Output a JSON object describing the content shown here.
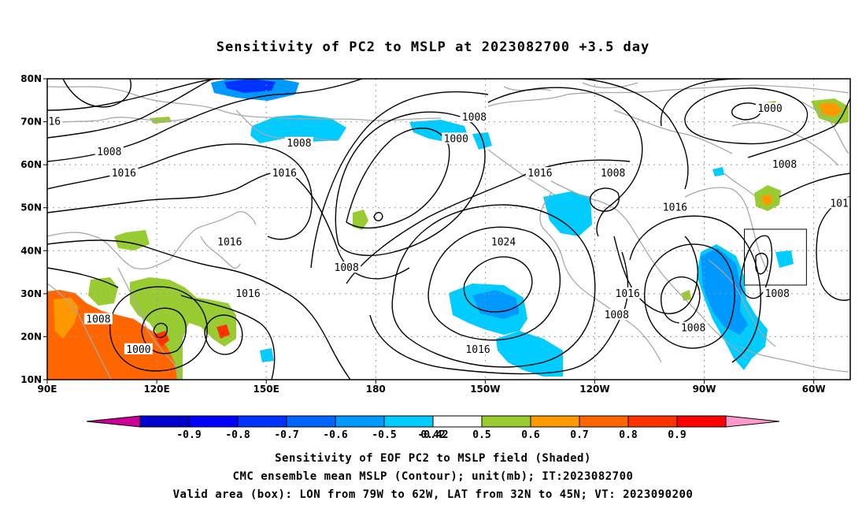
{
  "title": "Sensitivity of PC2 to MSLP at 2023082700 +3.5 day",
  "captions": [
    "Sensitivity of EOF PC2 to MSLP field (Shaded)",
    "CMC ensemble mean MSLP (Contour); unit(mb); IT:2023082700",
    "Valid area (box): LON from 79W to 62W, LAT from 32N to 45N; VT: 2023090200"
  ],
  "map": {
    "lon_range": [
      90,
      310
    ],
    "lat_range": [
      10,
      80
    ],
    "lat_ticks": [
      {
        "value": 80,
        "label": "80N"
      },
      {
        "value": 70,
        "label": "70N"
      },
      {
        "value": 60,
        "label": "60N"
      },
      {
        "value": 50,
        "label": "50N"
      },
      {
        "value": 40,
        "label": "40N"
      },
      {
        "value": 30,
        "label": "30N"
      },
      {
        "value": 20,
        "label": "20N"
      },
      {
        "value": 10,
        "label": "10N"
      }
    ],
    "lon_ticks": [
      {
        "value": 90,
        "label": "90E"
      },
      {
        "value": 120,
        "label": "120E"
      },
      {
        "value": 150,
        "label": "150E"
      },
      {
        "value": 180,
        "label": "180"
      },
      {
        "value": 210,
        "label": "150W"
      },
      {
        "value": 240,
        "label": "120W"
      },
      {
        "value": 270,
        "label": "90W"
      },
      {
        "value": 300,
        "label": "60W"
      }
    ],
    "valid_box": {
      "lon_min": 281,
      "lon_max": 298,
      "lat_min": 32,
      "lat_max": 45
    },
    "contour_labels": [
      {
        "text": "16",
        "lon": 92,
        "lat": 70
      },
      {
        "text": "1008",
        "lon": 107,
        "lat": 63
      },
      {
        "text": "1016",
        "lon": 111,
        "lat": 58
      },
      {
        "text": "1016",
        "lon": 140,
        "lat": 42
      },
      {
        "text": "1008",
        "lon": 159,
        "lat": 65
      },
      {
        "text": "1016",
        "lon": 155,
        "lat": 58
      },
      {
        "text": "1008",
        "lon": 207,
        "lat": 71
      },
      {
        "text": "1000",
        "lon": 202,
        "lat": 66
      },
      {
        "text": "1008",
        "lon": 172,
        "lat": 36
      },
      {
        "text": "1016",
        "lon": 145,
        "lat": 30
      },
      {
        "text": "1024",
        "lon": 215,
        "lat": 42
      },
      {
        "text": "1016",
        "lon": 225,
        "lat": 58
      },
      {
        "text": "1008",
        "lon": 245,
        "lat": 58
      },
      {
        "text": "1016",
        "lon": 262,
        "lat": 50
      },
      {
        "text": "1008",
        "lon": 292,
        "lat": 60
      },
      {
        "text": "1000",
        "lon": 288,
        "lat": 73
      },
      {
        "text": "101",
        "lon": 307,
        "lat": 51
      },
      {
        "text": "1016",
        "lon": 249,
        "lat": 30
      },
      {
        "text": "1008",
        "lon": 246,
        "lat": 25
      },
      {
        "text": "1008",
        "lon": 267,
        "lat": 22
      },
      {
        "text": "1008",
        "lon": 290,
        "lat": 30
      },
      {
        "text": "1016",
        "lon": 208,
        "lat": 17
      },
      {
        "text": "1008",
        "lon": 104,
        "lat": 24
      },
      {
        "text": "1000",
        "lon": 115,
        "lat": 17
      }
    ]
  },
  "colorbar": {
    "labels": [
      "-0.9",
      "-0.8",
      "-0.7",
      "-0.6",
      "-0.5",
      "-0.42",
      "0.42",
      "0.5",
      "0.6",
      "0.7",
      "0.8",
      "0.9"
    ],
    "colors": [
      "#0000cc",
      "#0000ff",
      "#0033ff",
      "#0066ff",
      "#0099ff",
      "#00ccff",
      "#ffffff",
      "#99cc33",
      "#ff9900",
      "#ff6600",
      "#ff3300",
      "#ff0000"
    ],
    "low_end_color": "#cc0099",
    "high_end_color": "#ff99cc"
  }
}
